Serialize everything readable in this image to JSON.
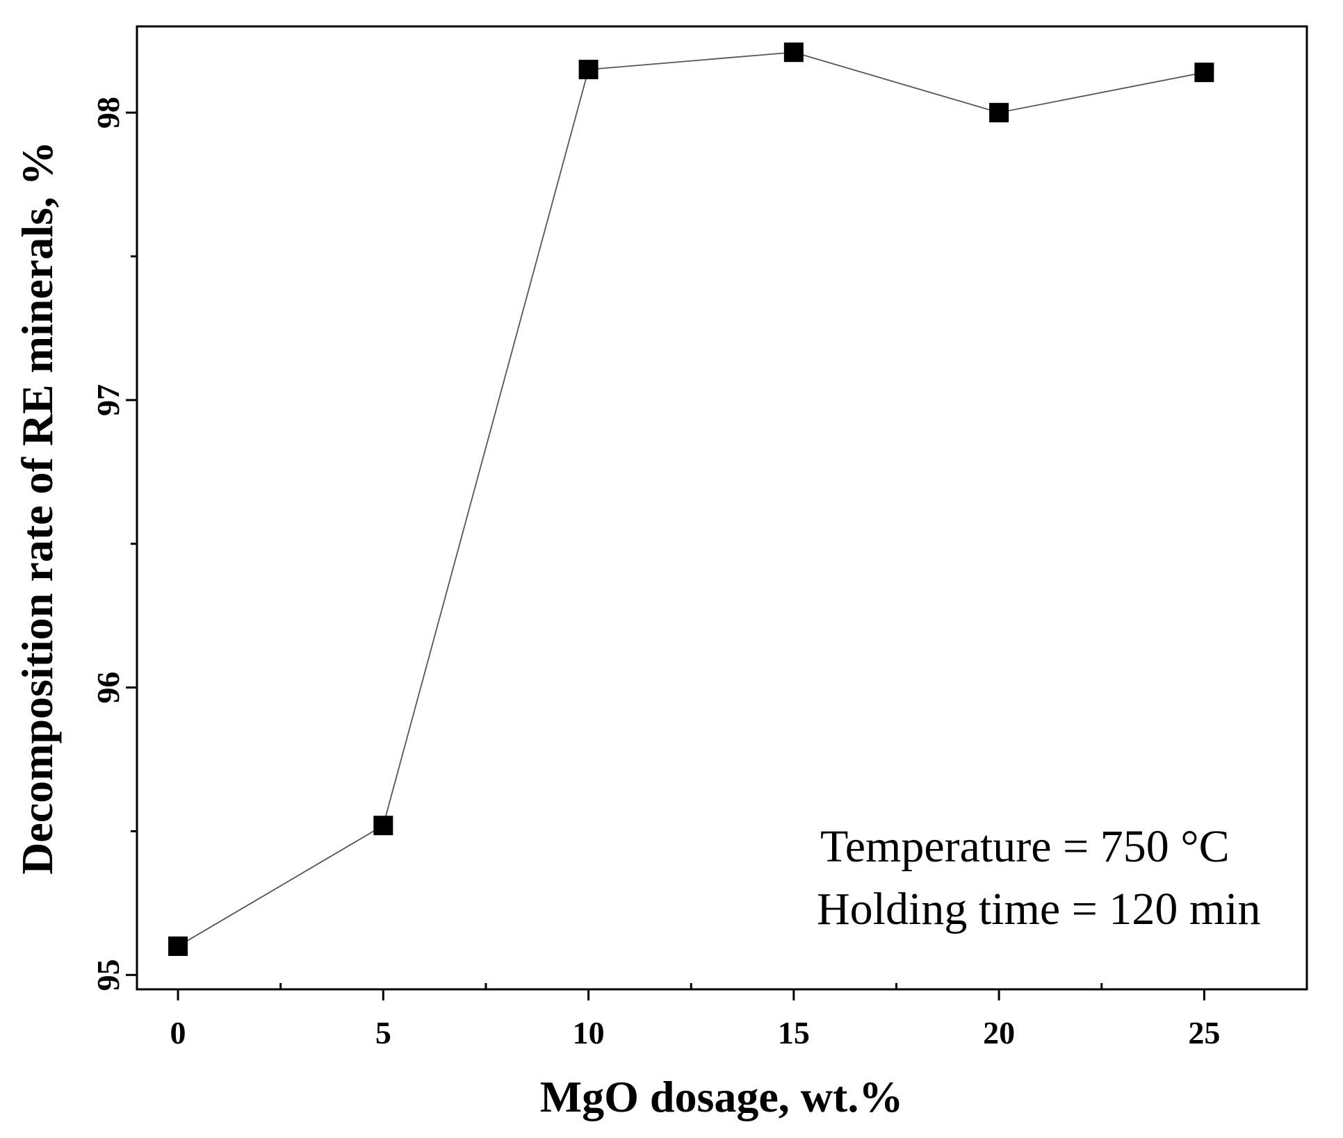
{
  "chart_data": {
    "type": "line",
    "title": "",
    "xlabel": "MgO dosage, wt.%",
    "ylabel": "Decomposition rate of RE minerals, %",
    "xlim": [
      -1,
      27.5
    ],
    "ylim": [
      94.95,
      98.3
    ],
    "x_ticks_major": [
      0,
      5,
      10,
      15,
      20,
      25
    ],
    "x_ticks_minor": [
      2.5,
      7.5,
      12.5,
      17.5,
      22.5
    ],
    "x_tick_labels": [
      "0",
      "5",
      "10",
      "15",
      "20",
      "25"
    ],
    "y_ticks_major": [
      95,
      96,
      97,
      98
    ],
    "y_ticks_minor": [
      95.5,
      96.5,
      97.5
    ],
    "y_tick_labels": [
      "95",
      "96",
      "97",
      "98"
    ],
    "grid": false,
    "series": [
      {
        "name": "Decomposition rate",
        "marker": "square",
        "x": [
          0,
          5,
          10,
          15,
          20,
          25
        ],
        "values": [
          95.1,
          95.52,
          98.15,
          98.21,
          98.0,
          98.14
        ]
      }
    ],
    "annotations": [
      "Temperature = 750 °C",
      "Holding time = 120 min"
    ],
    "colors": {
      "line": "#555555",
      "marker": "#000000",
      "axis": "#000000"
    }
  }
}
